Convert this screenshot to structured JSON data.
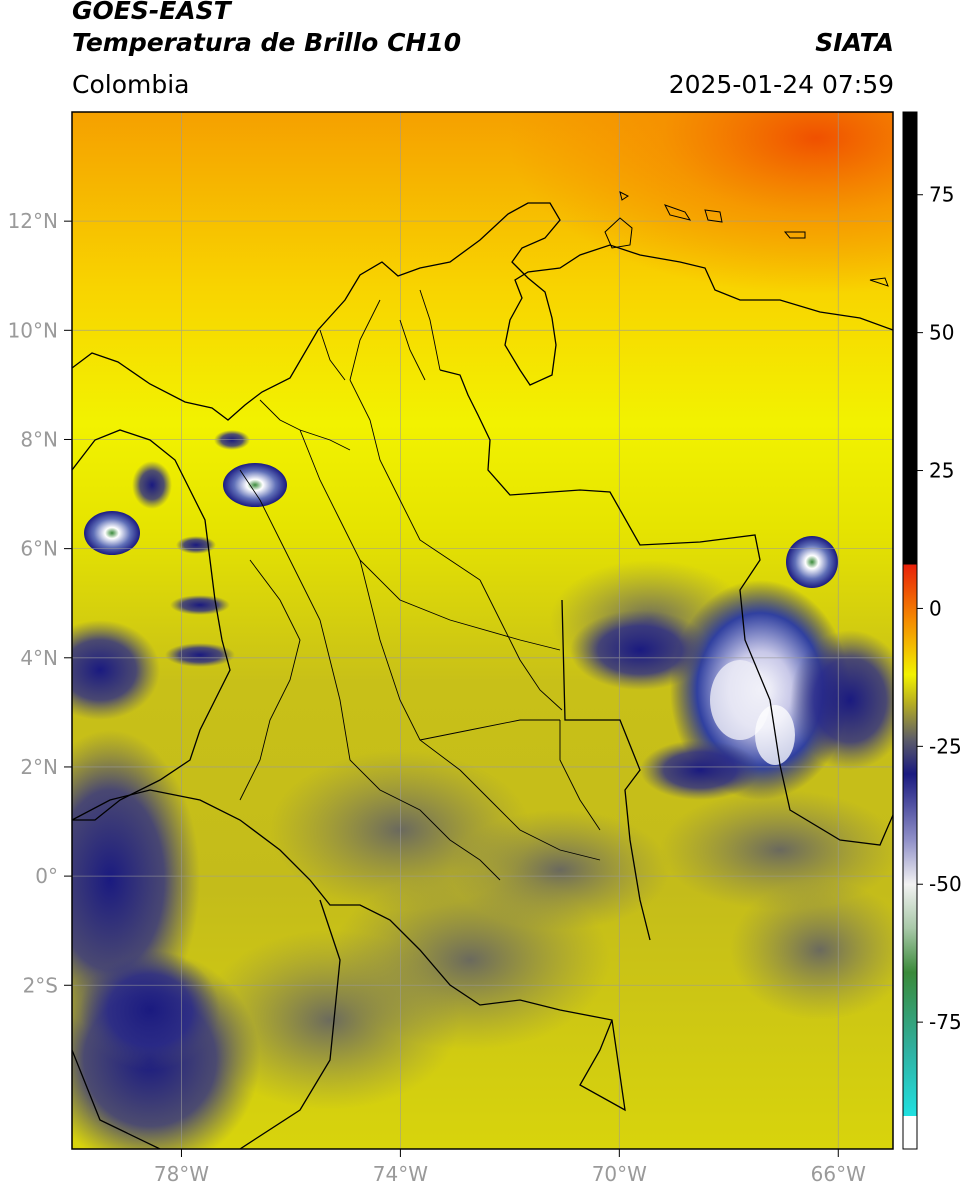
{
  "header": {
    "satellite": "GOES-EAST",
    "product": "Temperatura de Brillo CH10",
    "organization": "SIATA",
    "region": "Colombia",
    "datetime": "2025-01-24 07:59"
  },
  "map": {
    "lon_range": [
      -80,
      -65
    ],
    "lat_range": [
      -5,
      14
    ],
    "lon_ticks": [
      "78°W",
      "74°W",
      "70°W",
      "66°W"
    ],
    "lat_ticks": [
      "12°N",
      "10°N",
      "8°N",
      "6°N",
      "4°N",
      "2°N",
      "0°",
      "2°S"
    ],
    "grid": true,
    "features": [
      "country-borders",
      "department-borders",
      "coastline",
      "cloud-tops"
    ]
  },
  "colorbar": {
    "range": [
      -98,
      90
    ],
    "ticks": [
      "75",
      "50",
      "25",
      "0",
      "-25",
      "-50",
      "-75"
    ],
    "colors": {
      "hot": "#000000",
      "red": "#e8200a",
      "orange": "#f58a00",
      "yellow": "#f2f200",
      "olive": "#b8b020",
      "gray": "#5a5a6a",
      "navy": "#1a1a80",
      "white": "#f2f2f2",
      "green": "#3a8a3a",
      "cyan": "#20e0e0"
    }
  }
}
